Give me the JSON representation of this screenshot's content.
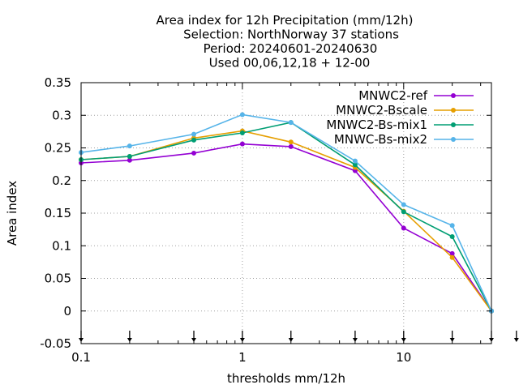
{
  "chart_data": {
    "type": "line",
    "title_lines": [
      "Area index  for 12h Precipitation (mm/12h)",
      "Selection: NorthNorway      37 stations",
      "Period: 20240601-20240630",
      "Used 00,06,12,18 + 12-00"
    ],
    "xlabel": "thresholds mm/12h",
    "ylabel": "Area index",
    "x_scale": "log",
    "xlim": [
      0.1,
      35
    ],
    "ylim": [
      -0.05,
      0.35
    ],
    "x_ticks": [
      {
        "value": 0.1,
        "label": "0.1"
      },
      {
        "value": 1,
        "label": "1"
      },
      {
        "value": 10,
        "label": "10"
      }
    ],
    "y_ticks": [
      {
        "value": 0.35,
        "label": "0.35"
      },
      {
        "value": 0.3,
        "label": "0.3"
      },
      {
        "value": 0.25,
        "label": "0.25"
      },
      {
        "value": 0.2,
        "label": "0.2"
      },
      {
        "value": 0.15,
        "label": "0.15"
      },
      {
        "value": 0.1,
        "label": "0.1"
      },
      {
        "value": 0.05,
        "label": "0.05"
      },
      {
        "value": 0,
        "label": "0"
      },
      {
        "value": -0.05,
        "label": "-0.05"
      }
    ],
    "grid": true,
    "legend_position": "top-right",
    "threshold_markers": [
      0.1,
      0.2,
      0.5,
      1,
      2,
      5,
      10,
      20,
      35,
      50
    ],
    "x": [
      0.1,
      0.2,
      0.5,
      1,
      2,
      5,
      10,
      20,
      35
    ],
    "series": [
      {
        "name": "MNWC2-ref",
        "color": "#9400d3",
        "values": [
          0.227,
          0.231,
          0.242,
          0.256,
          0.252,
          0.215,
          0.127,
          0.088,
          0.0
        ]
      },
      {
        "name": "MNWC2-Bscale",
        "color": "#e69f00",
        "values": [
          0.232,
          0.237,
          0.265,
          0.276,
          0.259,
          0.22,
          0.153,
          0.082,
          0.0
        ]
      },
      {
        "name": "MNWC2-Bs-mix1",
        "color": "#009e73",
        "values": [
          0.232,
          0.237,
          0.262,
          0.273,
          0.289,
          0.224,
          0.152,
          0.114,
          0.0
        ]
      },
      {
        "name": "MNWC-Bs-mix2",
        "color": "#56b4e9",
        "values": [
          0.243,
          0.253,
          0.271,
          0.301,
          0.289,
          0.23,
          0.163,
          0.131,
          0.0
        ]
      }
    ]
  }
}
